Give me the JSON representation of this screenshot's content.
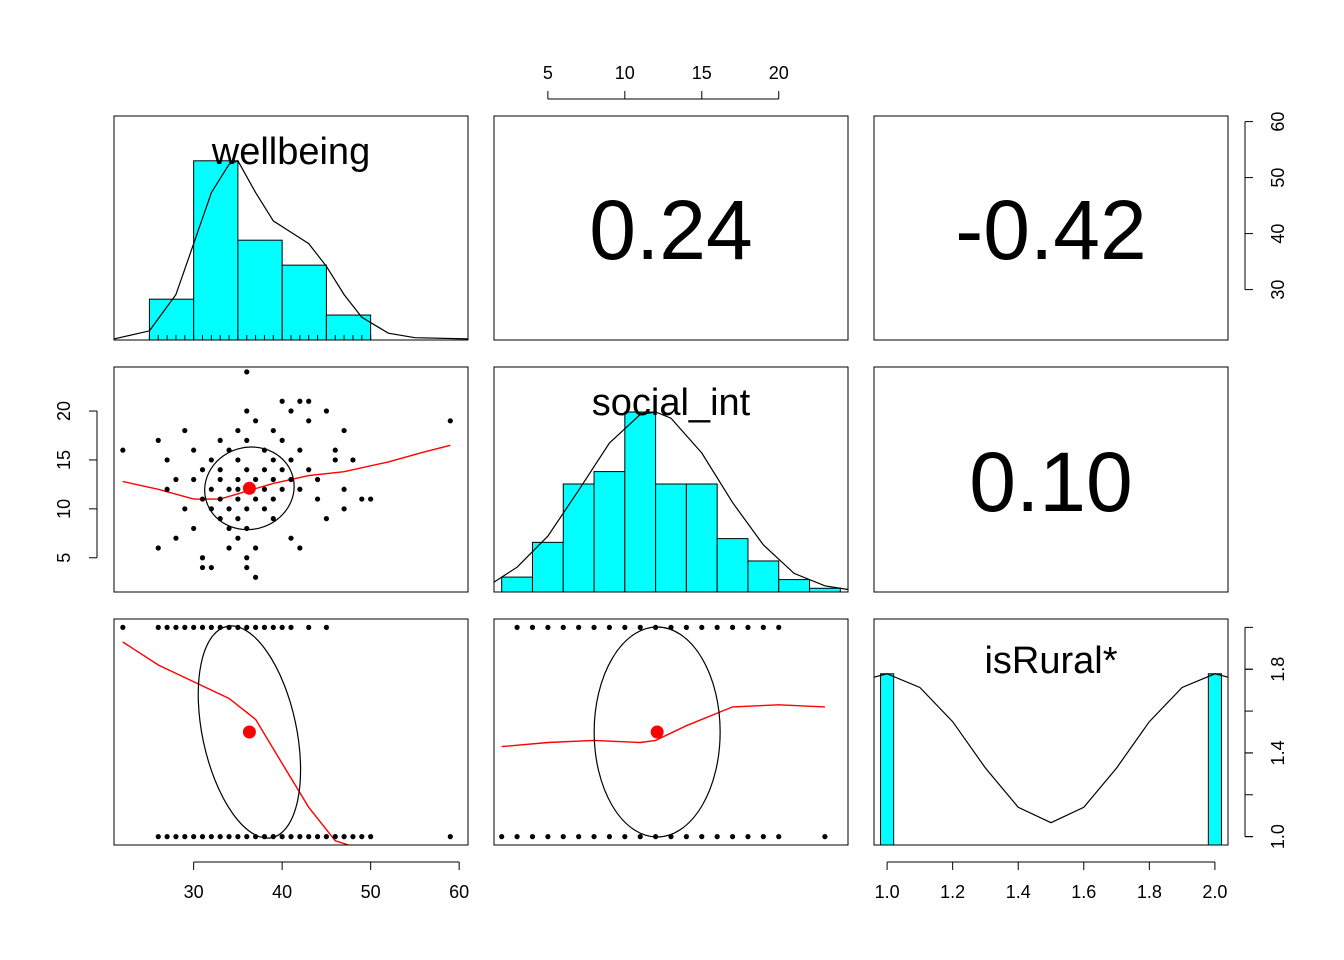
{
  "chart_data": {
    "type": "scatter",
    "layout": "scatterplot-matrix",
    "variables": [
      "wellbeing",
      "social_int",
      "isRural*"
    ],
    "colors": {
      "histogram_fill": "#00FFFF",
      "loess_line": "#FF0000",
      "mean_point": "#FF0000",
      "points": "#000000",
      "density_line": "#000000"
    },
    "correlations": [
      {
        "pair": [
          "wellbeing",
          "social_int"
        ],
        "value": "0.24"
      },
      {
        "pair": [
          "wellbeing",
          "isRural*"
        ],
        "value": "-0.42"
      },
      {
        "pair": [
          "social_int",
          "isRural*"
        ],
        "value": "0.10"
      }
    ],
    "axes": {
      "wellbeing": {
        "range": [
          21,
          61
        ],
        "ticks": [
          "30",
          "40",
          "50",
          "60"
        ]
      },
      "social_int": {
        "range": [
          1.5,
          24.5
        ],
        "ticks_top": [
          "5",
          "10",
          "15",
          "20"
        ],
        "ticks_left": [
          "5",
          "10",
          "15",
          "20"
        ]
      },
      "isRural": {
        "range": [
          0.96,
          2.04
        ],
        "ticks_bottom": [
          "1.0",
          "1.2",
          "1.4",
          "1.6",
          "1.8",
          "2.0"
        ],
        "ticks_right": [
          "1.0",
          "1.4",
          "1.8"
        ]
      }
    },
    "right_axis_row1": {
      "range": [
        21,
        61
      ],
      "ticks": [
        "30",
        "40",
        "50",
        "60"
      ]
    },
    "histograms": {
      "wellbeing": {
        "breaks": [
          25,
          30,
          35,
          40,
          45,
          50
        ],
        "heights": [
          0.036,
          0.158,
          0.088,
          0.066,
          0.022
        ],
        "density_x": [
          21,
          25,
          28,
          30,
          32,
          34,
          35,
          37,
          39,
          41,
          43,
          45,
          47,
          49,
          52,
          55,
          61
        ],
        "density_y": [
          0.001,
          0.008,
          0.04,
          0.085,
          0.13,
          0.155,
          0.158,
          0.13,
          0.105,
          0.095,
          0.085,
          0.065,
          0.04,
          0.02,
          0.006,
          0.002,
          0.001
        ]
      },
      "social_int": {
        "breaks": [
          2,
          4,
          6,
          8,
          10,
          12,
          14,
          16,
          18,
          20,
          22,
          24
        ],
        "heights": [
          0.012,
          0.04,
          0.087,
          0.097,
          0.145,
          0.087,
          0.087,
          0.043,
          0.025,
          0.01,
          0.003
        ],
        "density_x": [
          1.5,
          3,
          5,
          7,
          9,
          11,
          12,
          13,
          15,
          17,
          19,
          21,
          23,
          24.5
        ],
        "density_y": [
          0.008,
          0.02,
          0.045,
          0.082,
          0.12,
          0.143,
          0.145,
          0.14,
          0.112,
          0.072,
          0.038,
          0.015,
          0.005,
          0.002
        ]
      },
      "isRural": {
        "bars": [
          {
            "x": [
              0.98,
              1.02
            ],
            "height": 1.0
          },
          {
            "x": [
              1.98,
              2.02
            ],
            "height": 1.0
          }
        ],
        "density_x": [
          0.96,
          1.0,
          1.1,
          1.2,
          1.3,
          1.4,
          1.5,
          1.6,
          1.7,
          1.8,
          1.9,
          2.0,
          2.04
        ],
        "density_y": [
          0.98,
          1.0,
          0.92,
          0.72,
          0.45,
          0.22,
          0.13,
          0.22,
          0.45,
          0.72,
          0.92,
          1.0,
          0.98
        ]
      }
    },
    "wellbeing_vs_social_int": {
      "mean": [
        36.3,
        12.1
      ],
      "points": [
        [
          22,
          16
        ],
        [
          26,
          6
        ],
        [
          26,
          17
        ],
        [
          27,
          15
        ],
        [
          27,
          12
        ],
        [
          28,
          7
        ],
        [
          28,
          13
        ],
        [
          29,
          18
        ],
        [
          29,
          10
        ],
        [
          30,
          16
        ],
        [
          30,
          8
        ],
        [
          30,
          13
        ],
        [
          31,
          4
        ],
        [
          31,
          11
        ],
        [
          31,
          14
        ],
        [
          31,
          5
        ],
        [
          32,
          15
        ],
        [
          32,
          12
        ],
        [
          32,
          10
        ],
        [
          32,
          4
        ],
        [
          33,
          17
        ],
        [
          33,
          14
        ],
        [
          33,
          13
        ],
        [
          33,
          11
        ],
        [
          33,
          9
        ],
        [
          34,
          16
        ],
        [
          34,
          12
        ],
        [
          34,
          10
        ],
        [
          34,
          8
        ],
        [
          34,
          6
        ],
        [
          35,
          18
        ],
        [
          35,
          15
        ],
        [
          35,
          13
        ],
        [
          35,
          12
        ],
        [
          35,
          11
        ],
        [
          35,
          9
        ],
        [
          35,
          7
        ],
        [
          36,
          24
        ],
        [
          36,
          20
        ],
        [
          36,
          17
        ],
        [
          36,
          14
        ],
        [
          36,
          12
        ],
        [
          36,
          10
        ],
        [
          36,
          8
        ],
        [
          36,
          5
        ],
        [
          36,
          4
        ],
        [
          37,
          19
        ],
        [
          37,
          13
        ],
        [
          37,
          11
        ],
        [
          37,
          6
        ],
        [
          37,
          3
        ],
        [
          38,
          16
        ],
        [
          38,
          14
        ],
        [
          38,
          12
        ],
        [
          38,
          10
        ],
        [
          39,
          18
        ],
        [
          39,
          15
        ],
        [
          39,
          13
        ],
        [
          39,
          11
        ],
        [
          39,
          9
        ],
        [
          40,
          21
        ],
        [
          40,
          17
        ],
        [
          40,
          14
        ],
        [
          40,
          12
        ],
        [
          41,
          20
        ],
        [
          41,
          15
        ],
        [
          41,
          13
        ],
        [
          41,
          7
        ],
        [
          42,
          21
        ],
        [
          42,
          16
        ],
        [
          42,
          12
        ],
        [
          42,
          6
        ],
        [
          43,
          19
        ],
        [
          43,
          14
        ],
        [
          43,
          21
        ],
        [
          44,
          13
        ],
        [
          44,
          11
        ],
        [
          45,
          20
        ],
        [
          45,
          9
        ],
        [
          46,
          16
        ],
        [
          46,
          15
        ],
        [
          47,
          18
        ],
        [
          47,
          12
        ],
        [
          47,
          10
        ],
        [
          48,
          15
        ],
        [
          49,
          11
        ],
        [
          50,
          11
        ],
        [
          59,
          19
        ]
      ],
      "loess": [
        [
          22,
          12.8
        ],
        [
          26,
          12.0
        ],
        [
          30,
          11.0
        ],
        [
          33,
          11.0
        ],
        [
          36,
          11.8
        ],
        [
          39,
          12.6
        ],
        [
          43,
          13.4
        ],
        [
          47,
          13.8
        ],
        [
          52,
          14.8
        ],
        [
          56,
          15.8
        ],
        [
          59,
          16.5
        ]
      ]
    },
    "wellbeing_vs_isRural": {
      "mean": [
        36.3,
        1.5
      ],
      "points_top_x": [
        22,
        26,
        27,
        28,
        29,
        30,
        31,
        32,
        33,
        34,
        35,
        36,
        37,
        38,
        39,
        40,
        41,
        43,
        45
      ],
      "points_bottom_x": [
        26,
        27,
        28,
        29,
        30,
        31,
        32,
        33,
        34,
        35,
        36,
        37,
        38,
        39,
        40,
        41,
        42,
        43,
        44,
        45,
        46,
        47,
        48,
        49,
        50,
        59
      ],
      "loess": [
        [
          22,
          1.93
        ],
        [
          26,
          1.82
        ],
        [
          30,
          1.74
        ],
        [
          34,
          1.66
        ],
        [
          37,
          1.56
        ],
        [
          40,
          1.35
        ],
        [
          43,
          1.14
        ],
        [
          46,
          0.98
        ],
        [
          47.5,
          0.96
        ]
      ]
    },
    "social_int_vs_isRural": {
      "mean": [
        12.1,
        1.5
      ],
      "points_top_x": [
        3,
        4,
        5,
        6,
        7,
        8,
        9,
        10,
        11,
        12,
        13,
        14,
        15,
        16,
        17,
        18,
        19,
        20
      ],
      "points_bottom_x": [
        2,
        3,
        4,
        5,
        6,
        7,
        8,
        9,
        10,
        11,
        12,
        13,
        14,
        15,
        16,
        17,
        18,
        19,
        20,
        23
      ],
      "loess": [
        [
          2,
          1.43
        ],
        [
          5,
          1.45
        ],
        [
          8,
          1.46
        ],
        [
          11,
          1.45
        ],
        [
          12,
          1.46
        ],
        [
          14,
          1.53
        ],
        [
          17,
          1.62
        ],
        [
          20,
          1.63
        ],
        [
          23,
          1.62
        ]
      ]
    }
  }
}
